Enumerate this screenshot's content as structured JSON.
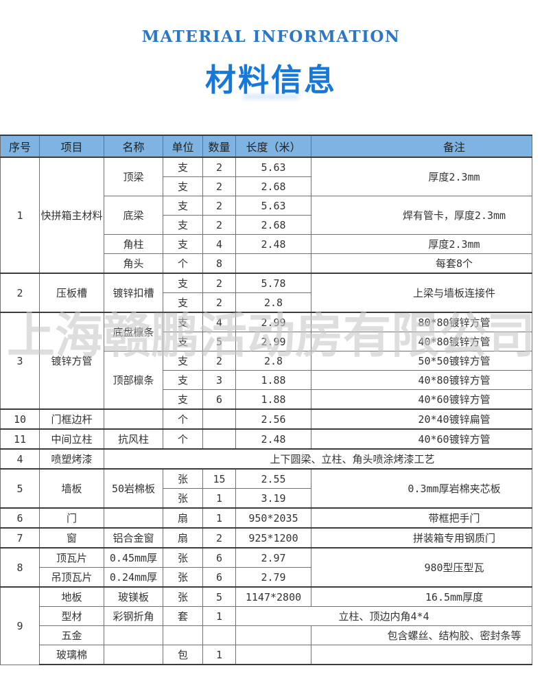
{
  "page": {
    "title_en": "MATERIAL INFORMATION",
    "title_zh": "材料信息",
    "watermark": "上海赣鹏活动房有限公司"
  },
  "colors": {
    "title_en": "#2C76C3",
    "title_zh": "#1679DA",
    "header_bg": "#7FB3E1",
    "border_light": "#707070",
    "border_dark": "#3a3a3a",
    "text": "#333333",
    "watermark": "#c7c7c7"
  },
  "table": {
    "headers": [
      {
        "key": "seq",
        "label": "序号"
      },
      {
        "key": "item",
        "label": "项目"
      },
      {
        "key": "name",
        "label": "名称"
      },
      {
        "key": "unit",
        "label": "单位"
      },
      {
        "key": "qty",
        "label": "数量"
      },
      {
        "key": "length",
        "label": "长度（米）"
      },
      {
        "key": "remark",
        "label": "备注",
        "cls": "rm"
      }
    ],
    "rows": [
      {
        "g": true,
        "cells": [
          {
            "t": "1",
            "rs": 6
          },
          {
            "t": "快拼箱主材料",
            "rs": 6
          },
          {
            "t": "顶梁",
            "rs": 2
          },
          {
            "t": "支"
          },
          {
            "t": "2"
          },
          {
            "t": "5.63"
          },
          {
            "t": "厚度2.3mm",
            "rs": 2,
            "cls": "rm"
          }
        ]
      },
      {
        "cells": [
          {
            "t": "支"
          },
          {
            "t": "2"
          },
          {
            "t": "2.68"
          }
        ]
      },
      {
        "cells": [
          {
            "t": "底梁",
            "rs": 2
          },
          {
            "t": "支"
          },
          {
            "t": "2"
          },
          {
            "t": "5.63"
          },
          {
            "t": "焊有管卡，厚度2.3mm",
            "rs": 2,
            "cls": "rm"
          }
        ]
      },
      {
        "cells": [
          {
            "t": "支"
          },
          {
            "t": "2"
          },
          {
            "t": "2.68"
          }
        ]
      },
      {
        "cells": [
          {
            "t": "角柱"
          },
          {
            "t": "支"
          },
          {
            "t": "4"
          },
          {
            "t": "2.48"
          },
          {
            "t": "厚度2.3mm",
            "cls": "rm"
          }
        ]
      },
      {
        "cells": [
          {
            "t": "角头"
          },
          {
            "t": "个"
          },
          {
            "t": "8"
          },
          {
            "t": ""
          },
          {
            "t": "每套8个",
            "cls": "rm"
          }
        ]
      },
      {
        "g": true,
        "cells": [
          {
            "t": "2",
            "rs": 2
          },
          {
            "t": "压板槽",
            "rs": 2
          },
          {
            "t": "镀锌扣槽",
            "rs": 2
          },
          {
            "t": "支"
          },
          {
            "t": "2"
          },
          {
            "t": "5.78"
          },
          {
            "t": "上梁与墙板连接件",
            "rs": 2,
            "cls": "rm"
          }
        ]
      },
      {
        "cells": [
          {
            "t": "支"
          },
          {
            "t": "2"
          },
          {
            "t": "2.8"
          }
        ]
      },
      {
        "g": true,
        "cells": [
          {
            "t": "3",
            "rs": 5
          },
          {
            "t": "镀锌方管",
            "rs": 5
          },
          {
            "t": "底盘檩条",
            "rs": 2
          },
          {
            "t": "支"
          },
          {
            "t": "4"
          },
          {
            "t": "2.99"
          },
          {
            "t": "80*80镀锌方管",
            "cls": "rm"
          }
        ]
      },
      {
        "cells": [
          {
            "t": "支"
          },
          {
            "t": "5"
          },
          {
            "t": "2.99"
          },
          {
            "t": "40*80镀锌方管",
            "cls": "rm"
          }
        ]
      },
      {
        "cells": [
          {
            "t": "顶部檩条",
            "rs": 3
          },
          {
            "t": "支"
          },
          {
            "t": "2"
          },
          {
            "t": "2.8"
          },
          {
            "t": "50*50镀锌方管",
            "cls": "rm"
          }
        ]
      },
      {
        "cells": [
          {
            "t": "支"
          },
          {
            "t": "3"
          },
          {
            "t": "1.88"
          },
          {
            "t": "40*80镀锌方管",
            "cls": "rm"
          }
        ]
      },
      {
        "cells": [
          {
            "t": "支"
          },
          {
            "t": "6"
          },
          {
            "t": "1.88"
          },
          {
            "t": "40*60镀锌方管",
            "cls": "rm"
          }
        ]
      },
      {
        "g": true,
        "cells": [
          {
            "t": "10"
          },
          {
            "t": "门框边杆"
          },
          {
            "t": ""
          },
          {
            "t": "个"
          },
          {
            "t": ""
          },
          {
            "t": "2.56"
          },
          {
            "t": "20*40镀锌扁管",
            "cls": "rm"
          }
        ]
      },
      {
        "g": true,
        "cells": [
          {
            "t": "11"
          },
          {
            "t": "中间立柱"
          },
          {
            "t": "抗风柱"
          },
          {
            "t": "个"
          },
          {
            "t": ""
          },
          {
            "t": "2.48"
          },
          {
            "t": "40*60镀锌方管",
            "cls": "rm"
          }
        ]
      },
      {
        "g": true,
        "cells": [
          {
            "t": "4"
          },
          {
            "t": "喷塑烤漆"
          },
          {
            "t": "上下圆梁、立柱、角头喷涂烤漆工艺",
            "cs": 5,
            "cls": "merge"
          }
        ]
      },
      {
        "g": true,
        "cells": [
          {
            "t": "5",
            "rs": 2
          },
          {
            "t": "墙板",
            "rs": 2
          },
          {
            "t": "50岩棉板",
            "rs": 2
          },
          {
            "t": "张"
          },
          {
            "t": "15"
          },
          {
            "t": "2.55"
          },
          {
            "t": "0.3mm厚岩棉夹芯板",
            "rs": 2,
            "cls": "rm"
          }
        ]
      },
      {
        "cells": [
          {
            "t": "张"
          },
          {
            "t": "1"
          },
          {
            "t": "3.19"
          }
        ]
      },
      {
        "g": true,
        "cells": [
          {
            "t": "6"
          },
          {
            "t": "门"
          },
          {
            "t": ""
          },
          {
            "t": "扇"
          },
          {
            "t": "1"
          },
          {
            "t": "950*2035"
          },
          {
            "t": "带框把手门",
            "cls": "rm"
          }
        ]
      },
      {
        "g": true,
        "cells": [
          {
            "t": "7"
          },
          {
            "t": "窗"
          },
          {
            "t": "铝合金窗"
          },
          {
            "t": "扇"
          },
          {
            "t": "2"
          },
          {
            "t": "925*1200"
          },
          {
            "t": "拼装箱专用钢质门",
            "cls": "rm"
          }
        ]
      },
      {
        "g": true,
        "cells": [
          {
            "t": "8",
            "rs": 2
          },
          {
            "t": "顶瓦片"
          },
          {
            "t": "0.45mm厚"
          },
          {
            "t": "张"
          },
          {
            "t": "6"
          },
          {
            "t": "2.97"
          },
          {
            "t": "980型压型瓦",
            "rs": 2,
            "cls": "rm"
          }
        ]
      },
      {
        "cells": [
          {
            "t": "吊顶瓦片"
          },
          {
            "t": "0.24mm厚"
          },
          {
            "t": "张"
          },
          {
            "t": "6"
          },
          {
            "t": "2.79"
          }
        ]
      },
      {
        "g": true,
        "cells": [
          {
            "t": "9",
            "rs": 4
          },
          {
            "t": "地板"
          },
          {
            "t": "玻镁板"
          },
          {
            "t": "张"
          },
          {
            "t": "5"
          },
          {
            "t": "1147*2800"
          },
          {
            "t": "16.5mm厚度",
            "cls": "rm"
          }
        ]
      },
      {
        "cells": [
          {
            "t": "型材"
          },
          {
            "t": "彩钢折角"
          },
          {
            "t": "套"
          },
          {
            "t": "1"
          },
          {
            "t": "立柱、顶边内角4*4",
            "cs": 2,
            "cls": "rm2"
          }
        ]
      },
      {
        "cells": [
          {
            "t": "五金"
          },
          {
            "t": ""
          },
          {
            "t": ""
          },
          {
            "t": ""
          },
          {
            "t": ""
          },
          {
            "t": "包含螺丝、结构胶、密封条等",
            "cls": "rm"
          }
        ]
      },
      {
        "cells": [
          {
            "t": "玻璃棉"
          },
          {
            "t": ""
          },
          {
            "t": "包"
          },
          {
            "t": "1"
          },
          {
            "t": ""
          },
          {
            "t": ""
          }
        ]
      }
    ]
  }
}
